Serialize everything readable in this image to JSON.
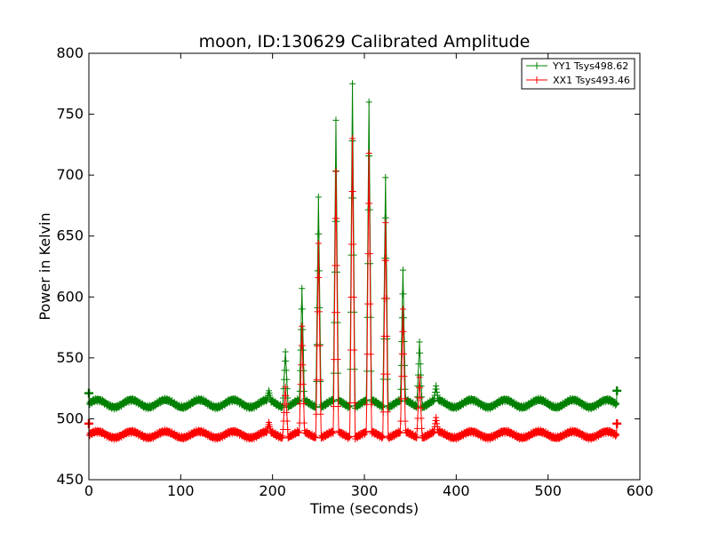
{
  "chart_data": {
    "type": "line",
    "title": "moon, ID:130629 Calibrated Amplitude",
    "xlabel": "Time (seconds)",
    "ylabel": "Power in Kelvin",
    "xlim": [
      0,
      600
    ],
    "ylim": [
      450,
      800
    ],
    "xticks": [
      0,
      100,
      200,
      300,
      400,
      500,
      600
    ],
    "yticks": [
      450,
      500,
      550,
      600,
      650,
      700,
      750,
      800
    ],
    "grid": false,
    "legend_position": "top-right",
    "peaks": [
      {
        "t": 196,
        "yy": 523,
        "xx": 497
      },
      {
        "t": 214,
        "yy": 555,
        "xx": 526
      },
      {
        "t": 232,
        "yy": 607,
        "xx": 576
      },
      {
        "t": 250,
        "yy": 682,
        "xx": 644
      },
      {
        "t": 269,
        "yy": 745,
        "xx": 703
      },
      {
        "t": 287,
        "yy": 775,
        "xx": 730
      },
      {
        "t": 305,
        "yy": 760,
        "xx": 718
      },
      {
        "t": 323,
        "yy": 698,
        "xx": 661
      },
      {
        "t": 342,
        "yy": 622,
        "xx": 590
      },
      {
        "t": 360,
        "yy": 563,
        "xx": 534
      },
      {
        "t": 378,
        "yy": 527,
        "xx": 501
      }
    ],
    "series": [
      {
        "name": "YY1 Tsys498.62",
        "color": "#008000",
        "baseline": 512.5,
        "ripple": 3,
        "period": 37,
        "start_value": 521,
        "end_value": 523
      },
      {
        "name": "XX1 Tsys493.46",
        "color": "#ff0000",
        "baseline": 487,
        "ripple": 2.5,
        "period": 37,
        "start_value": 496,
        "end_value": 496
      }
    ],
    "x_range": [
      0,
      575
    ]
  }
}
